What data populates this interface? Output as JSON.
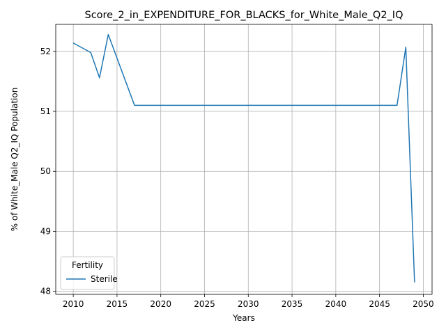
{
  "chart_data": {
    "type": "line",
    "title": "Score_2_in_EXPENDITURE_FOR_BLACKS_for_White_Male_Q2_IQ",
    "xlabel": "Years",
    "ylabel": "% of White_Male Q2_IQ Population",
    "xlim": [
      2008,
      2051
    ],
    "ylim": [
      47.95,
      52.45
    ],
    "xticks": [
      2010,
      2015,
      2020,
      2025,
      2030,
      2035,
      2040,
      2045,
      2050
    ],
    "yticks": [
      48,
      49,
      50,
      51,
      52
    ],
    "grid": true,
    "legend": {
      "title": "Fertility",
      "placement": "lower-left"
    },
    "colors": {
      "series": "#1f77b4",
      "grid": "#b0b0b0"
    },
    "series": [
      {
        "name": "Sterile",
        "x": [
          2010,
          2012,
          2013,
          2014,
          2017,
          2018,
          2020,
          2025,
          2030,
          2035,
          2040,
          2045,
          2047,
          2048,
          2049
        ],
        "values": [
          52.14,
          51.98,
          51.56,
          52.28,
          51.1,
          51.1,
          51.1,
          51.1,
          51.1,
          51.1,
          51.1,
          51.1,
          51.1,
          52.07,
          48.15
        ]
      }
    ]
  }
}
